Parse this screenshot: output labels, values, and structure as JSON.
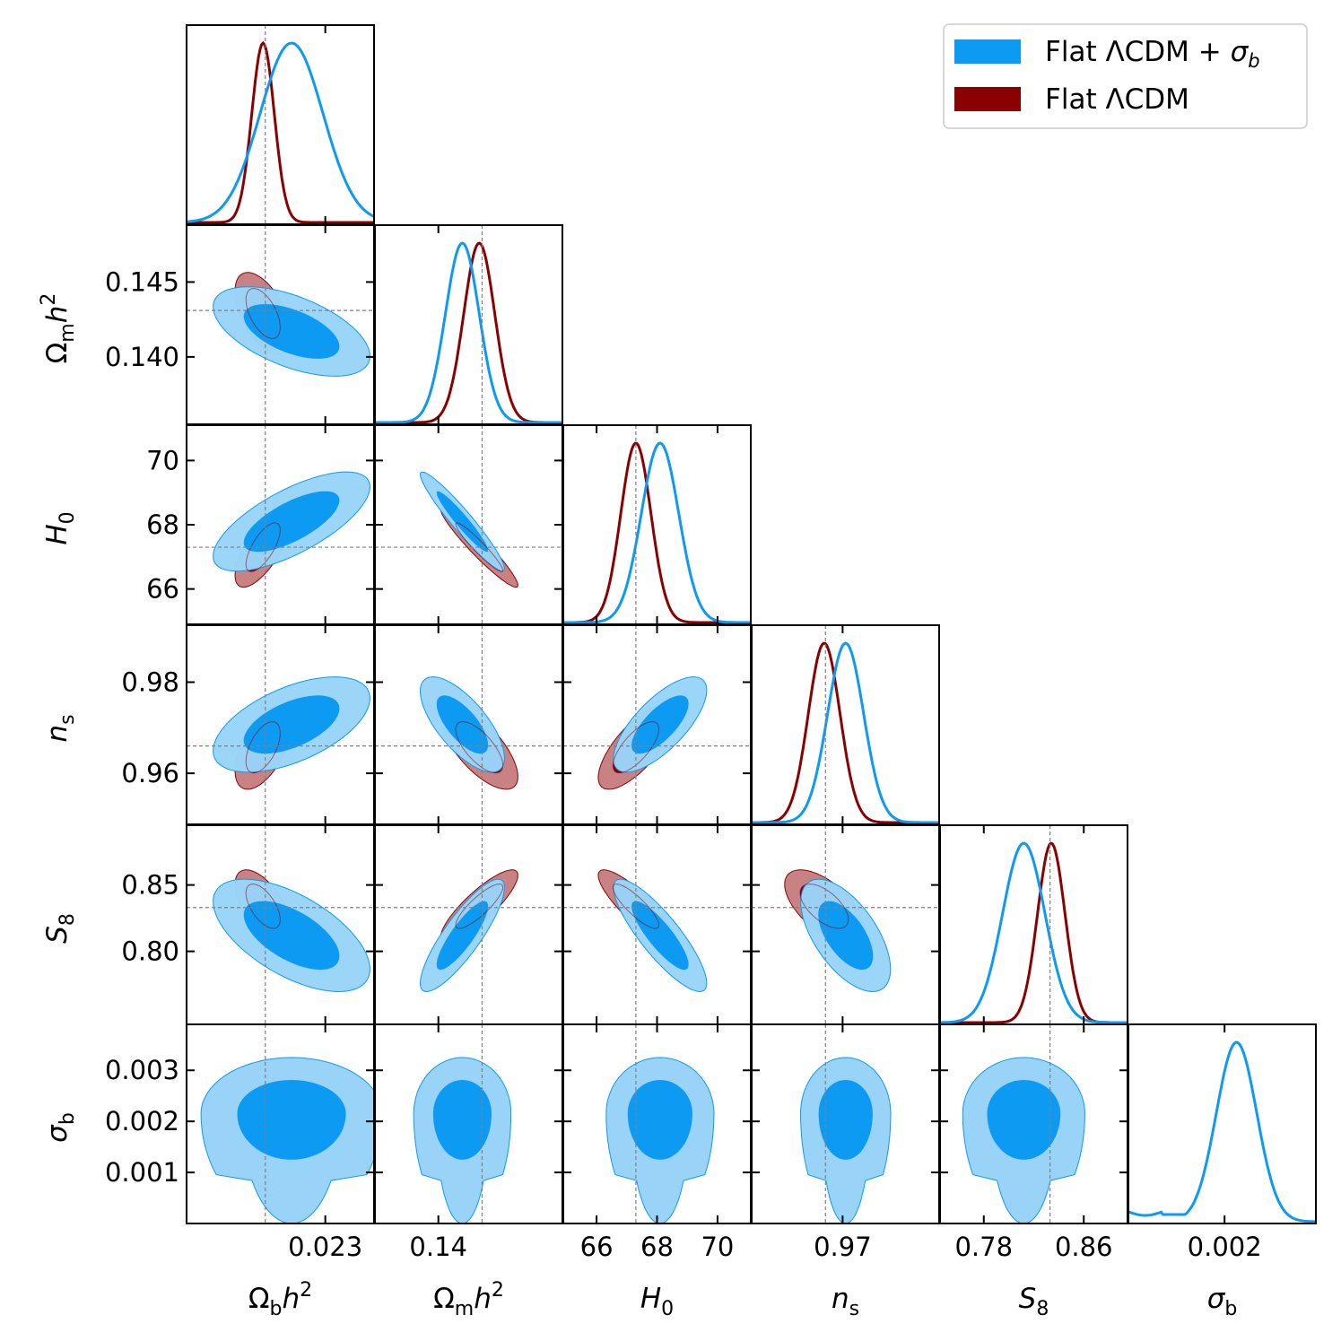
{
  "chart_data": {
    "type": "triangle-corner-plot",
    "legend": {
      "placement": "top-right",
      "entries": [
        {
          "id": "sigb",
          "label_main": "Flat ΛCDM + ",
          "label_sym": "σ",
          "label_sub": "b",
          "color": "#0c9af2",
          "fill_light": "#99d4f8",
          "fill_dark": "#0c9af2"
        },
        {
          "id": "lcdm",
          "label_main": "Flat ΛCDM",
          "color": "#8b0000",
          "fill_light": "#c98283",
          "fill_dark": "#8b0000"
        }
      ]
    },
    "parameters": [
      {
        "id": "ob",
        "sym": "Ω",
        "sub": "b",
        "tail": "h",
        "sup": "2",
        "italic": false,
        "range": [
          0.02115,
          0.02365
        ],
        "ticks": [
          0.023
        ],
        "tick_labels": [
          "0.023"
        ],
        "ref": 0.0222,
        "post_sigb": {
          "mean": 0.02255,
          "sd": 0.00042
        },
        "post_lcdm": {
          "mean": 0.02217,
          "sd": 0.00015
        }
      },
      {
        "id": "om",
        "sym": "Ω",
        "sub": "m",
        "tail": "h",
        "sup": "2",
        "italic": false,
        "range": [
          0.1355,
          0.1488
        ],
        "ticks": [
          0.14,
          0.145
        ],
        "tick_labels": [
          "0.140",
          "0.145"
        ],
        "xticks": [
          0.14
        ],
        "xtick_labels": [
          "0.14"
        ],
        "ref": 0.1431,
        "post_sigb": {
          "mean": 0.1417,
          "sd": 0.0012
        },
        "post_lcdm": {
          "mean": 0.1429,
          "sd": 0.0011
        }
      },
      {
        "id": "h0",
        "sym": "H",
        "sub": "0",
        "italic": true,
        "range": [
          64.9,
          71.1
        ],
        "ticks": [
          66,
          68,
          70
        ],
        "tick_labels": [
          "66",
          "68",
          "70"
        ],
        "ref": 67.3,
        "post_sigb": {
          "mean": 68.1,
          "sd": 0.62
        },
        "post_lcdm": {
          "mean": 67.3,
          "sd": 0.5
        }
      },
      {
        "id": "ns",
        "sym": "n",
        "sub": "s",
        "italic": true,
        "range": [
          0.9488,
          0.9925
        ],
        "ticks": [
          0.96,
          0.98
        ],
        "tick_labels": [
          "0.96",
          "0.98"
        ],
        "xticks": [
          0.97
        ],
        "xtick_labels": [
          "0.97"
        ],
        "ref": 0.966,
        "post_sigb": {
          "mean": 0.9707,
          "sd": 0.0042
        },
        "post_lcdm": {
          "mean": 0.9657,
          "sd": 0.0037
        }
      },
      {
        "id": "s8",
        "sym": "S",
        "sub": "8",
        "italic": true,
        "range": [
          0.745,
          0.895
        ],
        "ticks": [
          0.8,
          0.85
        ],
        "tick_labels": [
          "0.80",
          "0.85"
        ],
        "xticks": [
          0.78,
          0.86
        ],
        "xtick_labels": [
          "0.78",
          "0.86"
        ],
        "ref": 0.833,
        "post_sigb": {
          "mean": 0.812,
          "sd": 0.017
        },
        "post_lcdm": {
          "mean": 0.834,
          "sd": 0.011
        }
      },
      {
        "id": "sb",
        "sym": "σ",
        "sub": "b",
        "italic": true,
        "range": [
          0.0,
          0.0039
        ],
        "ticks": [
          0.001,
          0.002,
          0.003
        ],
        "tick_labels": [
          "0.001",
          "0.002",
          "0.003"
        ],
        "xticks": [
          0.002
        ],
        "xtick_labels": [
          "0.002"
        ]
      }
    ]
  }
}
